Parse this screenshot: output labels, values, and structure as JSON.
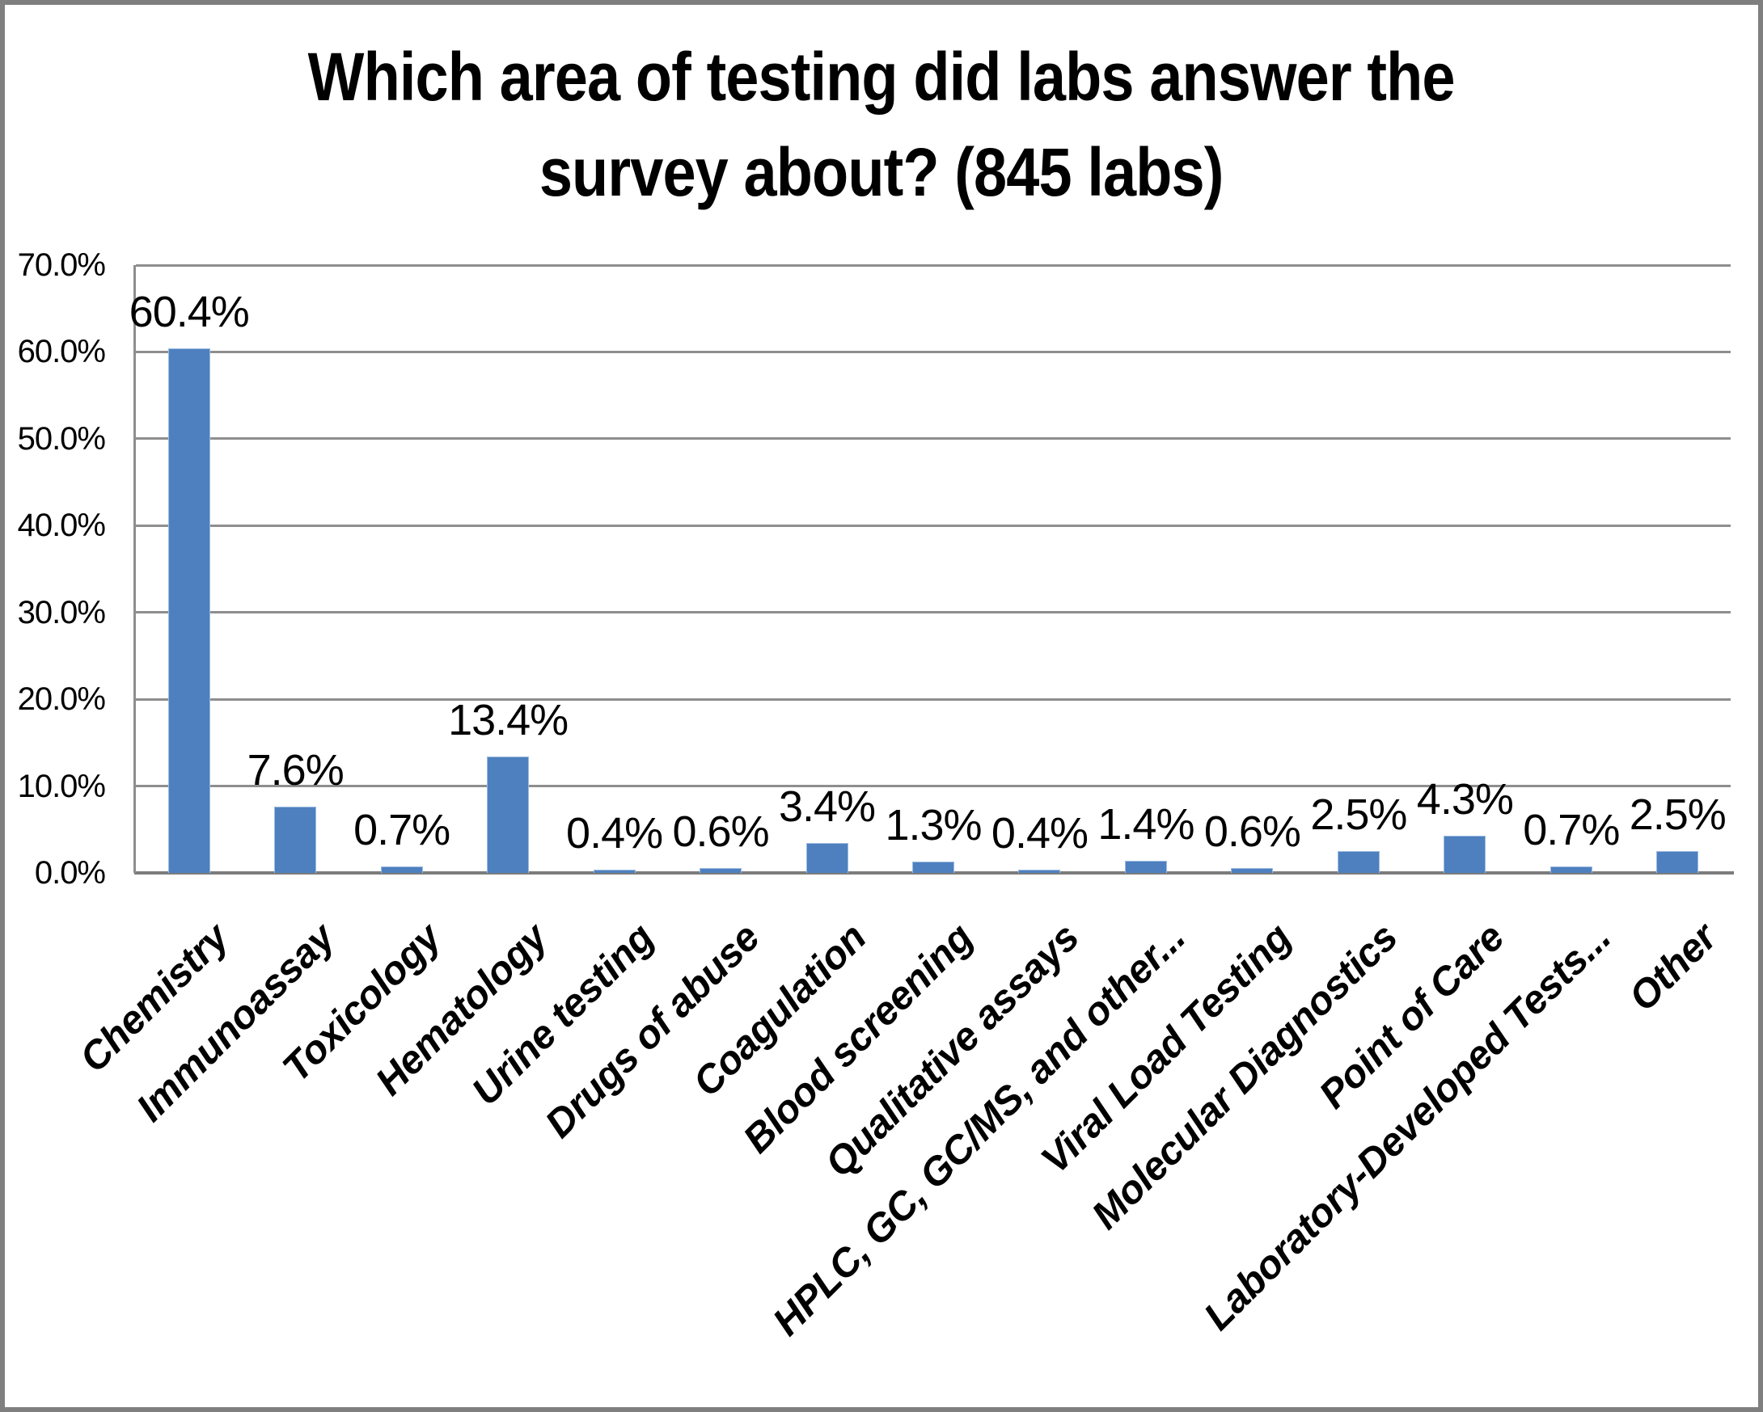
{
  "chart_data": {
    "type": "bar",
    "title": "Which area of testing did labs answer the survey about? (845 labs)",
    "title_lines": [
      "Which area of testing did labs answer the",
      "survey about? (845 labs)"
    ],
    "categories": [
      "Chemistry",
      "Immunoassay",
      "Toxicology",
      "Hematology",
      "Urine testing",
      "Drugs of abuse",
      "Coagulation",
      "Blood screening",
      "Qualitative assays",
      "HPLC, GC, GC/MS, and other...",
      "Viral Load Testing",
      "Molecular Diagnostics",
      "Point of Care",
      "Laboratory-Developed Tests...",
      "Other"
    ],
    "values": [
      60.4,
      7.6,
      0.7,
      13.4,
      0.4,
      0.6,
      3.4,
      1.3,
      0.4,
      1.4,
      0.6,
      2.5,
      4.3,
      0.7,
      2.5
    ],
    "bar_labels": [
      "60.4%",
      "7.6%",
      "0.7%",
      "13.4%",
      "0.4%",
      "0.6%",
      "3.4%",
      "1.3%",
      "0.4%",
      "1.4%",
      "0.6%",
      "2.5%",
      "4.3%",
      "0.7%",
      "2.5%"
    ],
    "y_ticks": [
      "70.0%",
      "60.0%",
      "50.0%",
      "40.0%",
      "30.0%",
      "20.0%",
      "10.0%",
      "0.0%"
    ],
    "ylim": [
      0,
      70
    ],
    "xlabel": "",
    "ylabel": "",
    "grid": true,
    "legend": null,
    "colors": {
      "bar_fill": "#4E80BF",
      "bar_edge": "#9DBCE0",
      "gridline": "#8E8E8E",
      "axis_line": "#7C7C7C",
      "frame_border": "#7F7F7F",
      "text": "#000000",
      "background": "#FFFFFF"
    }
  }
}
